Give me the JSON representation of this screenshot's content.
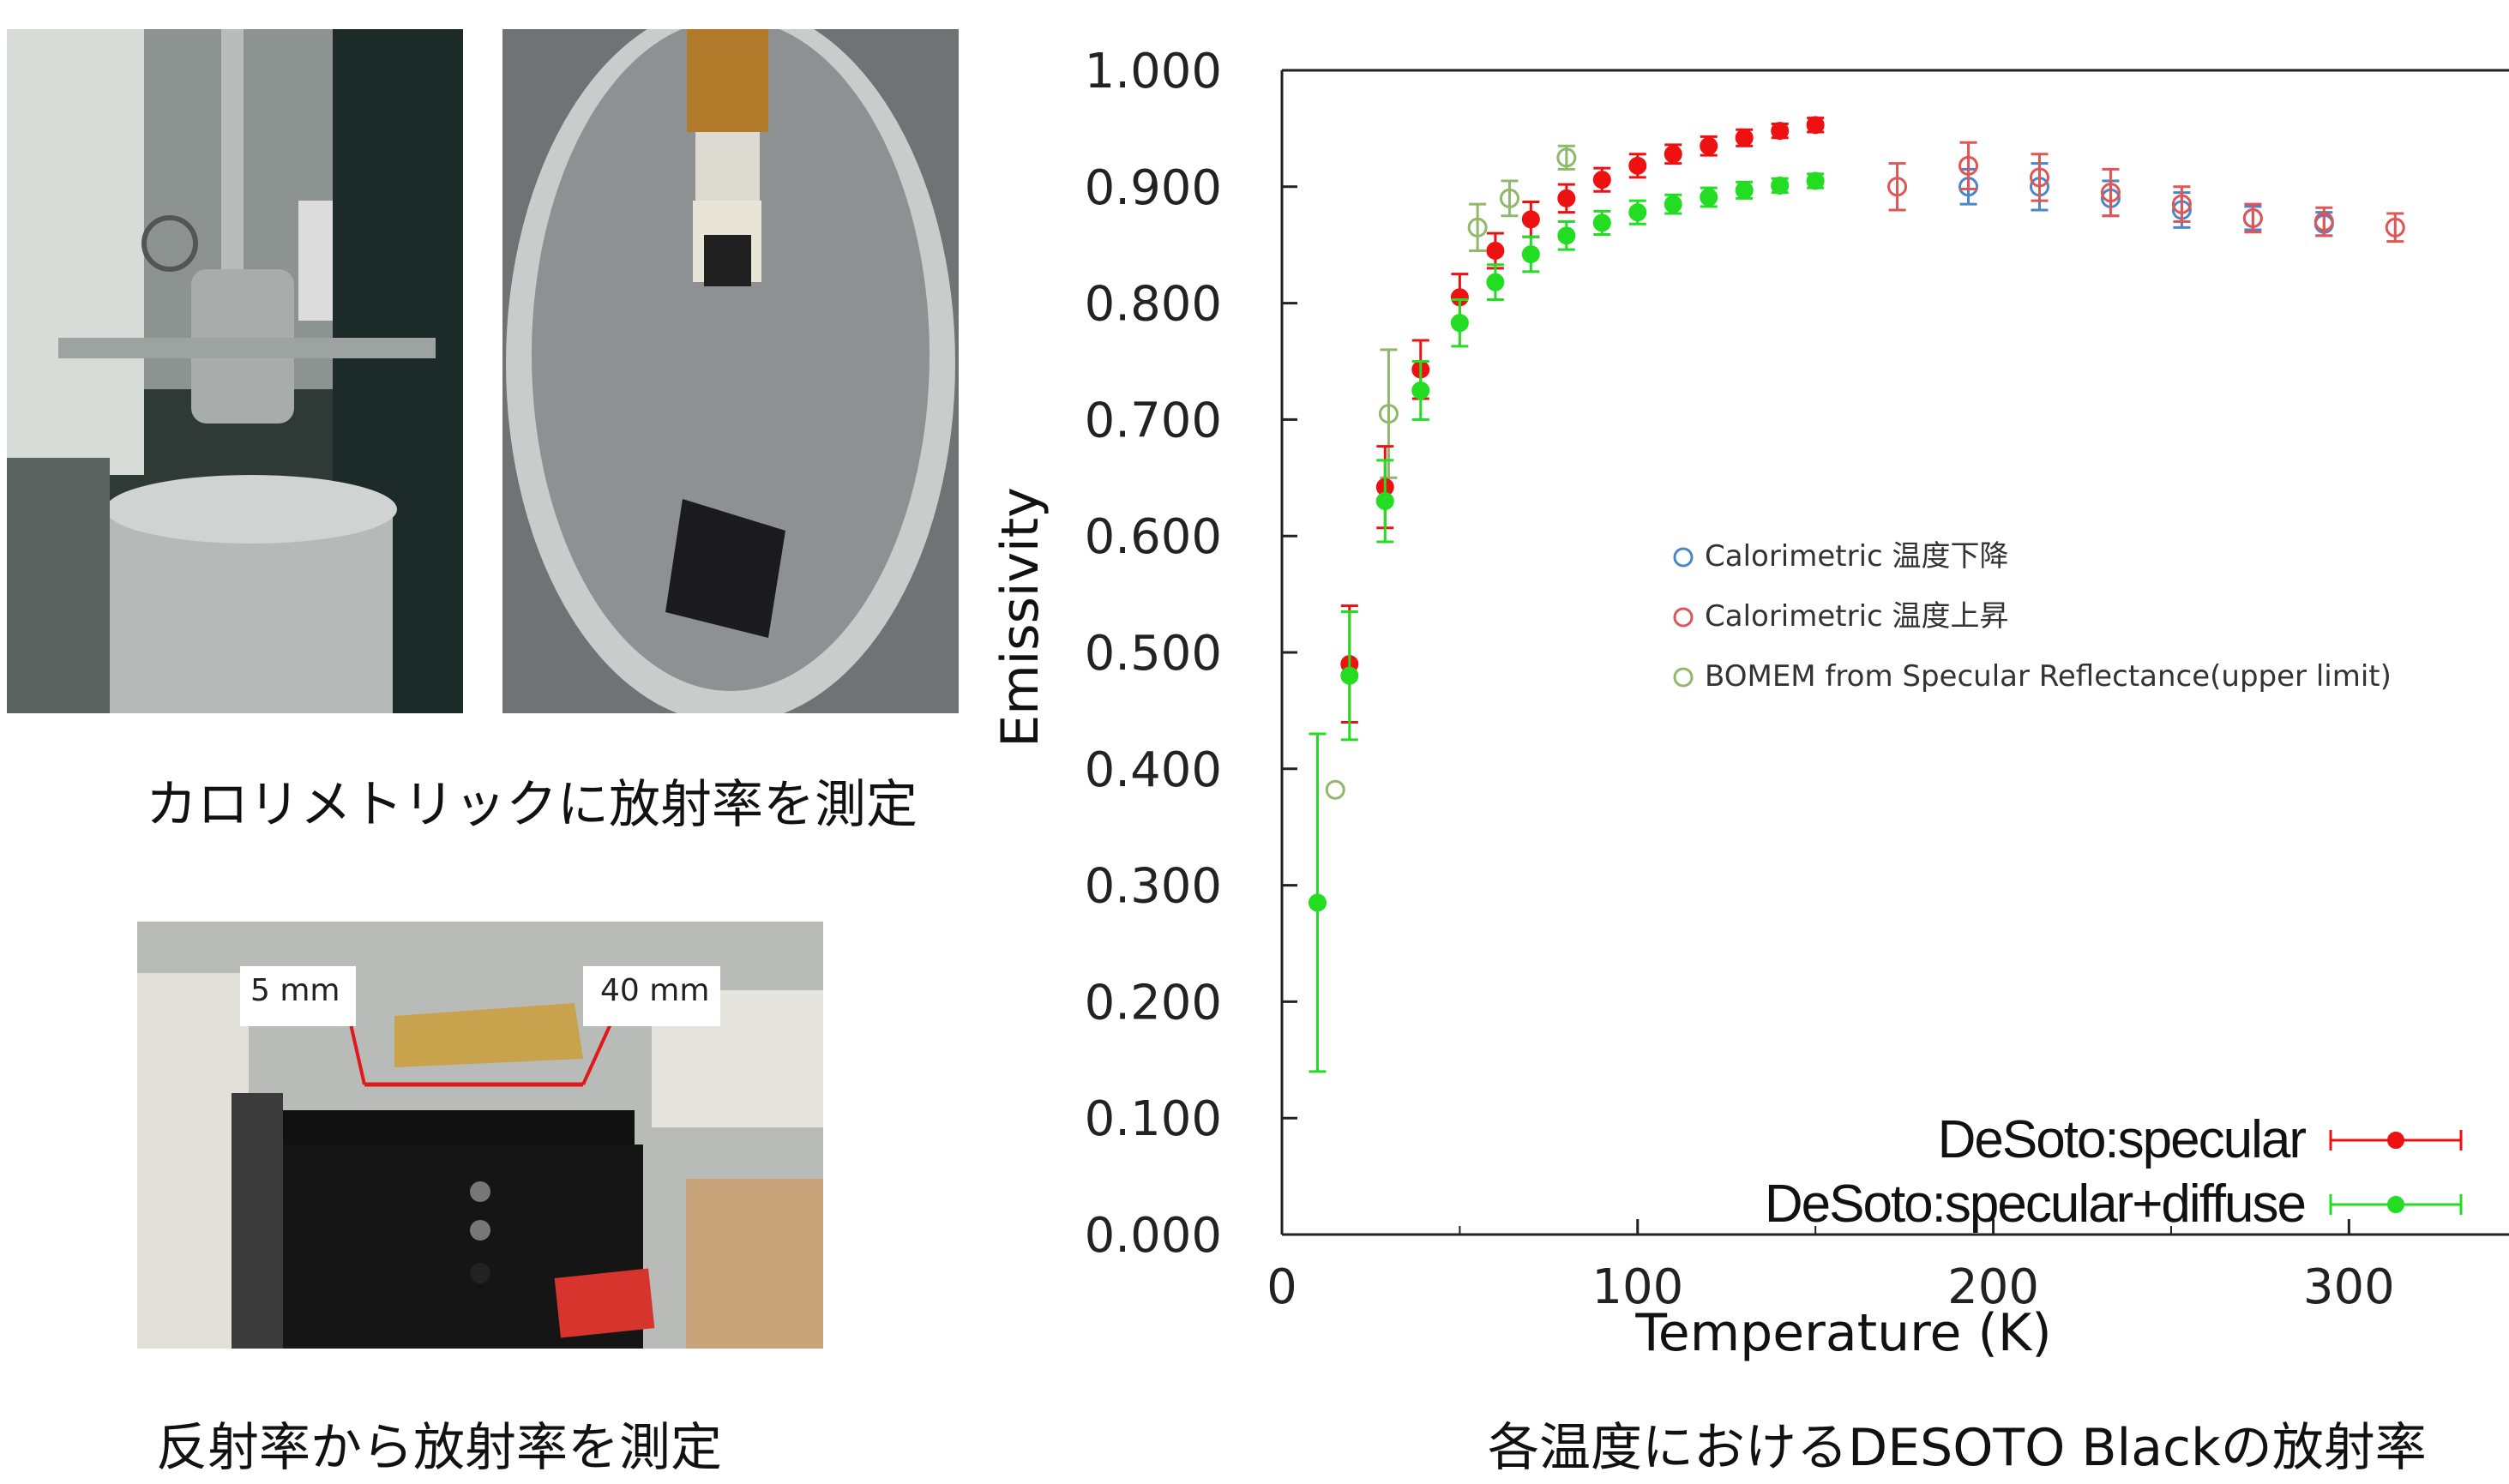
{
  "photos": {
    "calorimetric_caption": "カロリメトリックに放射率を測定",
    "reflectance_caption": "反射率から放射率を測定",
    "dim_label_1": "5 mm",
    "dim_label_2": "40 mm"
  },
  "chart_caption": "各温度におけるDESOTO Blackの放射率",
  "chart_data": {
    "type": "scatter",
    "xlabel": "Temperature (K)",
    "ylabel": "Emissivity",
    "xlim": [
      0,
      345
    ],
    "ylim": [
      0,
      1.0
    ],
    "x_ticks": [
      0,
      100,
      200,
      300
    ],
    "x_tick_labels": [
      "0",
      "100",
      "200",
      "300"
    ],
    "y_ticks": [
      0,
      0.1,
      0.2,
      0.3,
      0.4,
      0.5,
      0.6,
      0.7,
      0.8,
      0.9,
      1.0
    ],
    "y_tick_labels": [
      "0.000",
      "0.100",
      "0.200",
      "0.300",
      "0.400",
      "0.500",
      "0.600",
      "0.700",
      "0.800",
      "0.900",
      "1.000"
    ],
    "grid": false,
    "legend_position": "right",
    "series": [
      {
        "name": "Calorimetric 温度下降",
        "color": "#4a86c8",
        "marker": "open-circle",
        "points": [
          [
            193,
            0.9,
            0.015
          ],
          [
            213,
            0.9,
            0.02
          ],
          [
            233,
            0.89,
            0.015
          ],
          [
            253,
            0.88,
            0.015
          ],
          [
            273,
            0.873,
            0.01
          ],
          [
            293,
            0.868,
            0.01
          ]
        ]
      },
      {
        "name": "Calorimetric 温度上昇",
        "color": "#e05555",
        "marker": "open-circle",
        "points": [
          [
            173,
            0.9,
            0.02
          ],
          [
            193,
            0.918,
            0.02
          ],
          [
            213,
            0.908,
            0.02
          ],
          [
            233,
            0.895,
            0.02
          ],
          [
            253,
            0.885,
            0.015
          ],
          [
            273,
            0.873,
            0.012
          ],
          [
            293,
            0.87,
            0.012
          ],
          [
            313,
            0.865,
            0.012
          ]
        ]
      },
      {
        "name": "BOMEM from Specular Reflectance(upper limit)",
        "color": "#8fb86a",
        "marker": "open-circle",
        "points": [
          [
            15,
            0.382,
            0
          ],
          [
            30,
            0.705,
            0.055
          ],
          [
            55,
            0.865,
            0.02
          ],
          [
            64,
            0.89,
            0.015
          ],
          [
            80,
            0.925,
            0.01
          ]
        ]
      },
      {
        "name": "DeSoto:specular",
        "color": "#ee1111",
        "marker": "filled-circle",
        "points": [
          [
            19,
            0.49,
            0.05
          ],
          [
            29,
            0.642,
            0.035
          ],
          [
            39,
            0.743,
            0.025
          ],
          [
            50,
            0.805,
            0.02
          ],
          [
            60,
            0.845,
            0.015
          ],
          [
            70,
            0.872,
            0.015
          ],
          [
            80,
            0.89,
            0.012
          ],
          [
            90,
            0.906,
            0.01
          ],
          [
            100,
            0.918,
            0.01
          ],
          [
            110,
            0.928,
            0.008
          ],
          [
            120,
            0.935,
            0.008
          ],
          [
            130,
            0.942,
            0.007
          ],
          [
            140,
            0.948,
            0.006
          ],
          [
            150,
            0.953,
            0.006
          ]
        ]
      },
      {
        "name": "DeSoto:specular+diffuse",
        "color": "#22dd22",
        "marker": "filled-circle",
        "points": [
          [
            10,
            0.285,
            0.145
          ],
          [
            19,
            0.48,
            0.055
          ],
          [
            29,
            0.63,
            0.035
          ],
          [
            39,
            0.725,
            0.025
          ],
          [
            50,
            0.783,
            0.02
          ],
          [
            60,
            0.818,
            0.015
          ],
          [
            70,
            0.842,
            0.015
          ],
          [
            80,
            0.858,
            0.012
          ],
          [
            90,
            0.869,
            0.01
          ],
          [
            100,
            0.878,
            0.01
          ],
          [
            110,
            0.885,
            0.008
          ],
          [
            120,
            0.891,
            0.008
          ],
          [
            130,
            0.897,
            0.007
          ],
          [
            140,
            0.901,
            0.006
          ],
          [
            150,
            0.905,
            0.006
          ]
        ]
      }
    ]
  }
}
